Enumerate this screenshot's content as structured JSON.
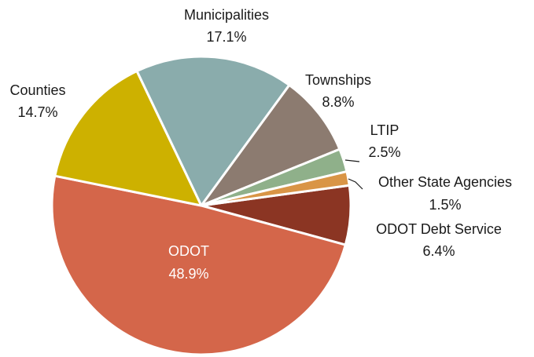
{
  "chart_data": {
    "type": "pie",
    "categories": [
      "ODOT Debt Service",
      "ODOT",
      "Counties",
      "Municipalities",
      "Townships",
      "LTIP",
      "Other State Agencies"
    ],
    "values": [
      6.4,
      48.9,
      14.7,
      17.1,
      8.8,
      2.5,
      1.5
    ],
    "value_labels": [
      "6.4%",
      "48.9%",
      "14.7%",
      "17.1%",
      "8.8%",
      "2.5%",
      "1.5%"
    ],
    "colors": [
      "#8b3523",
      "#d4664a",
      "#cdb100",
      "#8aacac",
      "#8c7b70",
      "#8fb08a",
      "#d99546"
    ]
  }
}
